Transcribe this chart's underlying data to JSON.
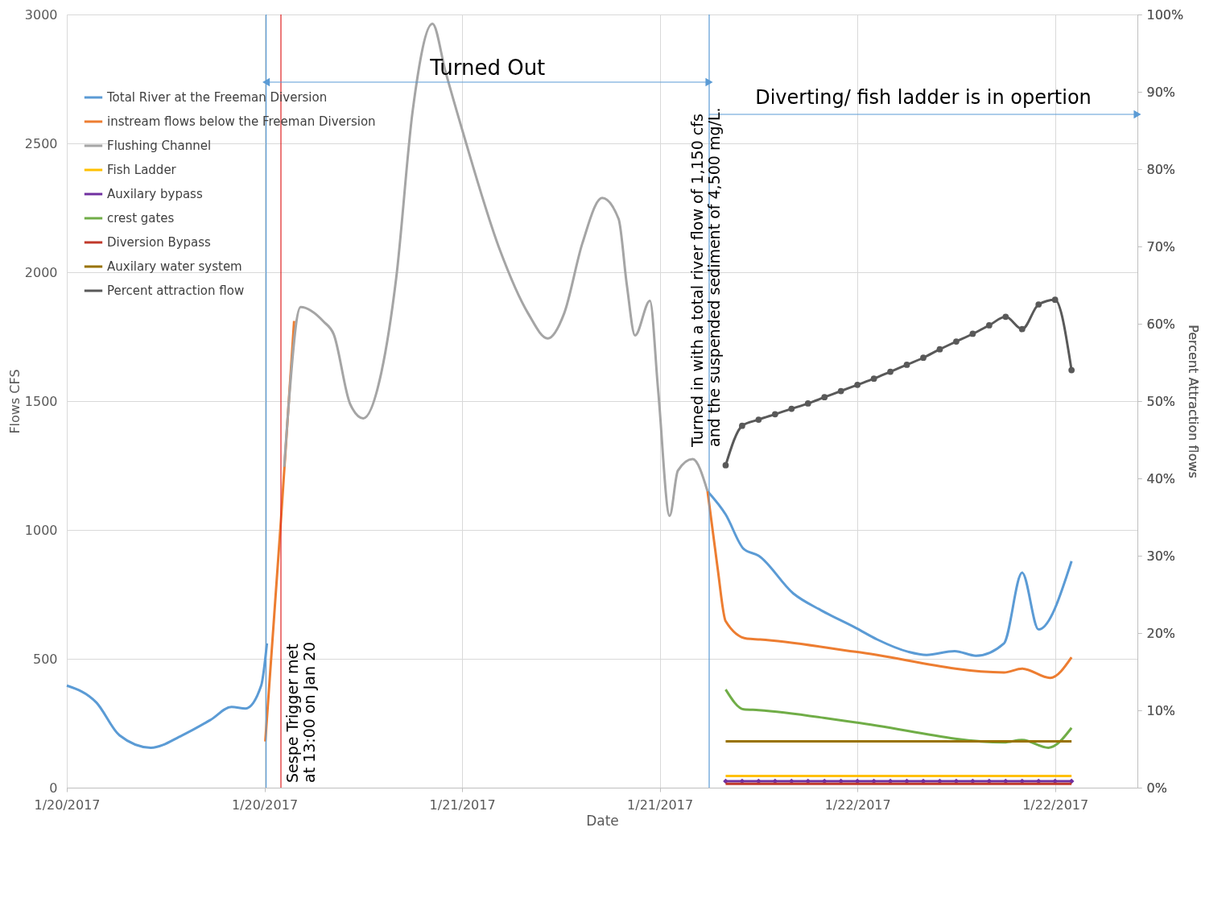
{
  "chart_data": {
    "type": "line",
    "xlabel": "Date",
    "ylabel": "Flows CFS",
    "y2label": "Percent Attraction flows",
    "xlim": [
      "2017-01-20T00:00",
      "2017-01-22T17:00"
    ],
    "xticks": [
      {
        "value": "2017-01-20T00:00",
        "label": "1/20/2017"
      },
      {
        "value": "2017-01-20T12:00",
        "label": "1/20/2017"
      },
      {
        "value": "2017-01-21T00:00",
        "label": "1/21/2017"
      },
      {
        "value": "2017-01-21T12:00",
        "label": "1/21/2017"
      },
      {
        "value": "2017-01-22T00:00",
        "label": "1/22/2017"
      },
      {
        "value": "2017-01-22T12:00",
        "label": "1/22/2017"
      }
    ],
    "ylim": [
      0,
      3000
    ],
    "yticks": [
      0,
      500,
      1000,
      1500,
      2000,
      2500,
      3000
    ],
    "y2lim": [
      0,
      100
    ],
    "y2ticks": [
      {
        "value": 0,
        "label": "0%"
      },
      {
        "value": 10,
        "label": "10%"
      },
      {
        "value": 20,
        "label": "20%"
      },
      {
        "value": 30,
        "label": "30%"
      },
      {
        "value": 40,
        "label": "40%"
      },
      {
        "value": 50,
        "label": "50%"
      },
      {
        "value": 60,
        "label": "60%"
      },
      {
        "value": 70,
        "label": "70%"
      },
      {
        "value": 80,
        "label": "80%"
      },
      {
        "value": 90,
        "label": "90%"
      },
      {
        "value": 100,
        "label": "100%"
      }
    ],
    "grid": true,
    "legend": "top left",
    "line_style": "solid",
    "series": [
      {
        "name": "Total River at the Freeman Diversion",
        "color": "#5b9bd5",
        "marker": "none",
        "x": [
          "2017-01-20T00:00",
          "2017-01-20T01:48",
          "2017-01-20T03:12",
          "2017-01-20T05:06",
          "2017-01-20T07:00",
          "2017-01-20T08:42",
          "2017-01-20T10:00",
          "2017-01-20T10:51",
          "2017-01-20T11:48",
          "2017-01-20T12:09",
          "2017-01-20T12:30",
          "2017-01-21T14:54",
          "2017-01-21T16:00",
          "2017-01-21T17:06",
          "2017-01-21T18:00",
          "2017-01-21T20:06",
          "2017-01-21T21:48",
          "2017-01-21T23:54",
          "2017-01-22T01:12",
          "2017-01-22T03:06",
          "2017-01-22T04:12",
          "2017-01-22T05:54",
          "2017-01-22T07:12",
          "2017-01-22T08:54",
          "2017-01-22T10:00",
          "2017-01-22T11:00",
          "2017-01-22T13:00"
        ],
        "values": [
          396,
          330,
          203,
          155,
          203,
          262,
          313,
          307,
          396,
          560,
          null,
          1150,
          1060,
          926,
          900,
          754,
          688,
          620,
          575,
          527,
          515,
          530,
          512,
          560,
          834,
          614,
          879
        ]
      },
      {
        "name": "instream flows below the Freeman Diversion",
        "color": "#ed7d31",
        "marker": "none",
        "x": [
          "2017-01-20T12:03",
          "2017-01-20T13:00",
          "2017-01-20T13:48",
          "2017-01-20T14:12",
          "2017-01-21T14:54",
          "2017-01-21T15:30",
          "2017-01-21T16:00",
          "2017-01-21T17:18",
          "2017-01-21T18:06",
          "2017-01-21T23:54",
          "2017-01-22T08:54",
          "2017-01-22T10:00",
          "2017-01-22T11:42",
          "2017-01-22T13:00"
        ],
        "values": [
          179,
          1037,
          1811,
          null,
          1150,
          858,
          646,
          578,
          575,
          527,
          447,
          462,
          426,
          506
        ]
      },
      {
        "name": "Flushing Channel",
        "color": "#a5a5a5",
        "marker": "none",
        "x": [
          "2017-01-20T13:12",
          "2017-01-20T14:12",
          "2017-01-20T15:36",
          "2017-01-20T16:12",
          "2017-01-20T17:12",
          "2017-01-20T18:00",
          "2017-01-20T19:06",
          "2017-01-20T20:00",
          "2017-01-20T21:00",
          "2017-01-20T22:12",
          "2017-01-20T23:00",
          "2017-01-21T00:06",
          "2017-01-21T02:18",
          "2017-01-21T04:00",
          "2017-01-21T05:12",
          "2017-01-21T06:12",
          "2017-01-21T07:18",
          "2017-01-21T08:30",
          "2017-01-21T09:30",
          "2017-01-21T10:00",
          "2017-01-21T10:30",
          "2017-01-21T11:24",
          "2017-01-21T11:54",
          "2017-01-21T12:36",
          "2017-01-21T13:06",
          "2017-01-21T14:00",
          "2017-01-21T14:54"
        ],
        "values": [
          1245,
          1865,
          1808,
          1760,
          1489,
          1433,
          1612,
          1978,
          2627,
          2964,
          2776,
          2532,
          2085,
          1841,
          1743,
          1841,
          2112,
          2288,
          2207,
          1951,
          1755,
          1889,
          1543,
          1055,
          1230,
          1275,
          1150
        ]
      },
      {
        "name": "Fish Ladder",
        "color": "#ffc000",
        "marker": "none",
        "x": [
          "2017-01-21T16:00",
          "2017-01-22T13:00"
        ],
        "values": [
          45,
          45
        ]
      },
      {
        "name": "Auxilary bypass",
        "color": "#7030a0",
        "marker": "diamond",
        "x": [
          "2017-01-21T16:00",
          "2017-01-21T17:00",
          "2017-01-21T18:00",
          "2017-01-21T19:00",
          "2017-01-21T20:00",
          "2017-01-21T21:00",
          "2017-01-21T22:00",
          "2017-01-21T23:00",
          "2017-01-22T00:00",
          "2017-01-22T01:00",
          "2017-01-22T02:00",
          "2017-01-22T03:00",
          "2017-01-22T04:00",
          "2017-01-22T05:00",
          "2017-01-22T06:00",
          "2017-01-22T07:00",
          "2017-01-22T08:00",
          "2017-01-22T09:00",
          "2017-01-22T10:00",
          "2017-01-22T11:00",
          "2017-01-22T12:00",
          "2017-01-22T13:00"
        ],
        "values": [
          25,
          25,
          25,
          25,
          25,
          25,
          25,
          25,
          25,
          25,
          25,
          25,
          25,
          25,
          25,
          25,
          25,
          25,
          25,
          25,
          25,
          25
        ]
      },
      {
        "name": "crest gates",
        "color": "#70ad47",
        "marker": "none",
        "x": [
          "2017-01-21T16:00",
          "2017-01-21T17:06",
          "2017-01-21T18:00",
          "2017-01-21T23:54",
          "2017-01-22T08:54",
          "2017-01-22T10:00",
          "2017-01-22T11:36",
          "2017-01-22T13:00"
        ],
        "values": [
          381,
          304,
          301,
          253,
          176,
          185,
          155,
          232
        ]
      },
      {
        "name": "Diversion Bypass",
        "color": "#c0392b",
        "marker": "none",
        "x": [
          "2017-01-21T16:00",
          "2017-01-22T13:00"
        ],
        "values": [
          15,
          15
        ]
      },
      {
        "name": "Auxilary water system",
        "color": "#997300",
        "marker": "none",
        "x": [
          "2017-01-21T16:00",
          "2017-01-22T13:00"
        ],
        "values": [
          180,
          180
        ]
      },
      {
        "name": "Percent attraction flow",
        "color": "#595959",
        "marker": "circle",
        "axis": "y2",
        "x": [
          "2017-01-21T16:00",
          "2017-01-21T17:00",
          "2017-01-21T18:00",
          "2017-01-21T19:00",
          "2017-01-21T20:00",
          "2017-01-21T21:00",
          "2017-01-21T22:00",
          "2017-01-21T23:00",
          "2017-01-22T00:00",
          "2017-01-22T01:00",
          "2017-01-22T02:00",
          "2017-01-22T03:00",
          "2017-01-22T04:00",
          "2017-01-22T05:00",
          "2017-01-22T06:00",
          "2017-01-22T07:00",
          "2017-01-22T08:00",
          "2017-01-22T09:00",
          "2017-01-22T10:00",
          "2017-01-22T11:00",
          "2017-01-22T12:00",
          "2017-01-22T13:00"
        ],
        "values": [
          41.7,
          46.8,
          47.6,
          48.3,
          49.0,
          49.7,
          50.5,
          51.3,
          52.1,
          52.9,
          53.8,
          54.7,
          55.6,
          56.7,
          57.7,
          58.7,
          59.8,
          60.9,
          59.3,
          62.5,
          63.1,
          54.0
        ]
      }
    ],
    "ref_lines": [
      {
        "axis": "x",
        "value": "2017-01-20T12:06",
        "color": "#5b9bd5",
        "line_style": "solid"
      },
      {
        "axis": "x",
        "value": "2017-01-21T15:00",
        "color": "#5b9bd5",
        "line_style": "solid"
      },
      {
        "axis": "x",
        "value": "2017-01-20T13:00",
        "color": "#e02020",
        "line_style": "solid",
        "label": "Sespe Trigger met\nat 13:00 on Jan 20"
      }
    ],
    "annotations": [
      "Turned Out",
      "Diverting/ fish ladder is in opertion",
      "Turned in with a total river flow of 1,150 cfs\nand the suspended sediment of 4,500 mg/L."
    ]
  }
}
